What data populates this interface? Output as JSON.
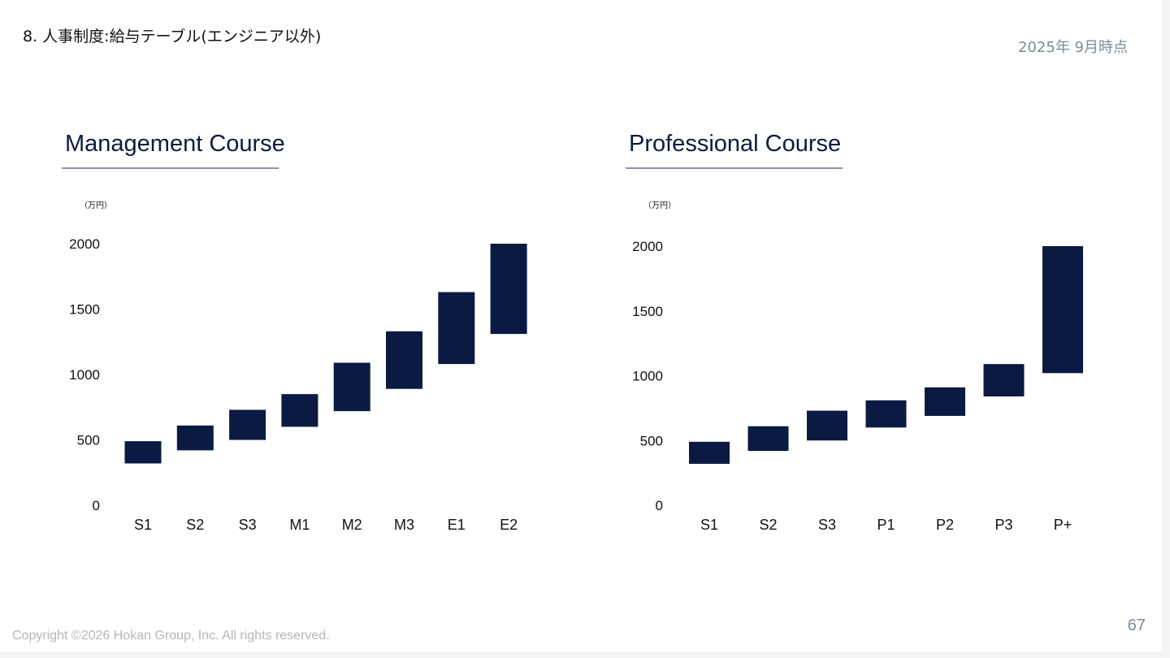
{
  "slide": {
    "title": "8. 人事制度:給与テーブル(エンジニア以外)",
    "date": "2025年 9月時点",
    "copyright": "Copyright ©2026 Hokan Group, Inc. All rights reserved.",
    "page_number": "67"
  },
  "colors": {
    "bar": "#0a1a42",
    "title": "#0d1b3d",
    "rule": "#8a96a8"
  },
  "chart_data": [
    {
      "type": "bar",
      "title": "Management Course",
      "unit": "（万円）",
      "categories": [
        "S1",
        "S2",
        "S3",
        "M1",
        "M2",
        "M3",
        "E1",
        "E2"
      ],
      "series": [
        {
          "low": [
            320,
            420,
            500,
            600,
            720,
            890,
            1080,
            1310
          ],
          "high": [
            490,
            610,
            730,
            850,
            1090,
            1330,
            1630,
            2000
          ]
        }
      ],
      "yticks": [
        0,
        500,
        1000,
        1500,
        2000
      ],
      "ylim": [
        0,
        2000
      ],
      "grid": false
    },
    {
      "type": "bar",
      "title": "Professional Course",
      "unit": "（万円）",
      "categories": [
        "S1",
        "S2",
        "S3",
        "P1",
        "P2",
        "P3",
        "P+"
      ],
      "series": [
        {
          "low": [
            320,
            420,
            500,
            600,
            690,
            840,
            1020
          ],
          "high": [
            490,
            610,
            730,
            810,
            910,
            1090,
            2000
          ]
        }
      ],
      "yticks": [
        0,
        500,
        1000,
        1500,
        2000
      ],
      "ylim": [
        0,
        2000
      ],
      "grid": false
    }
  ]
}
